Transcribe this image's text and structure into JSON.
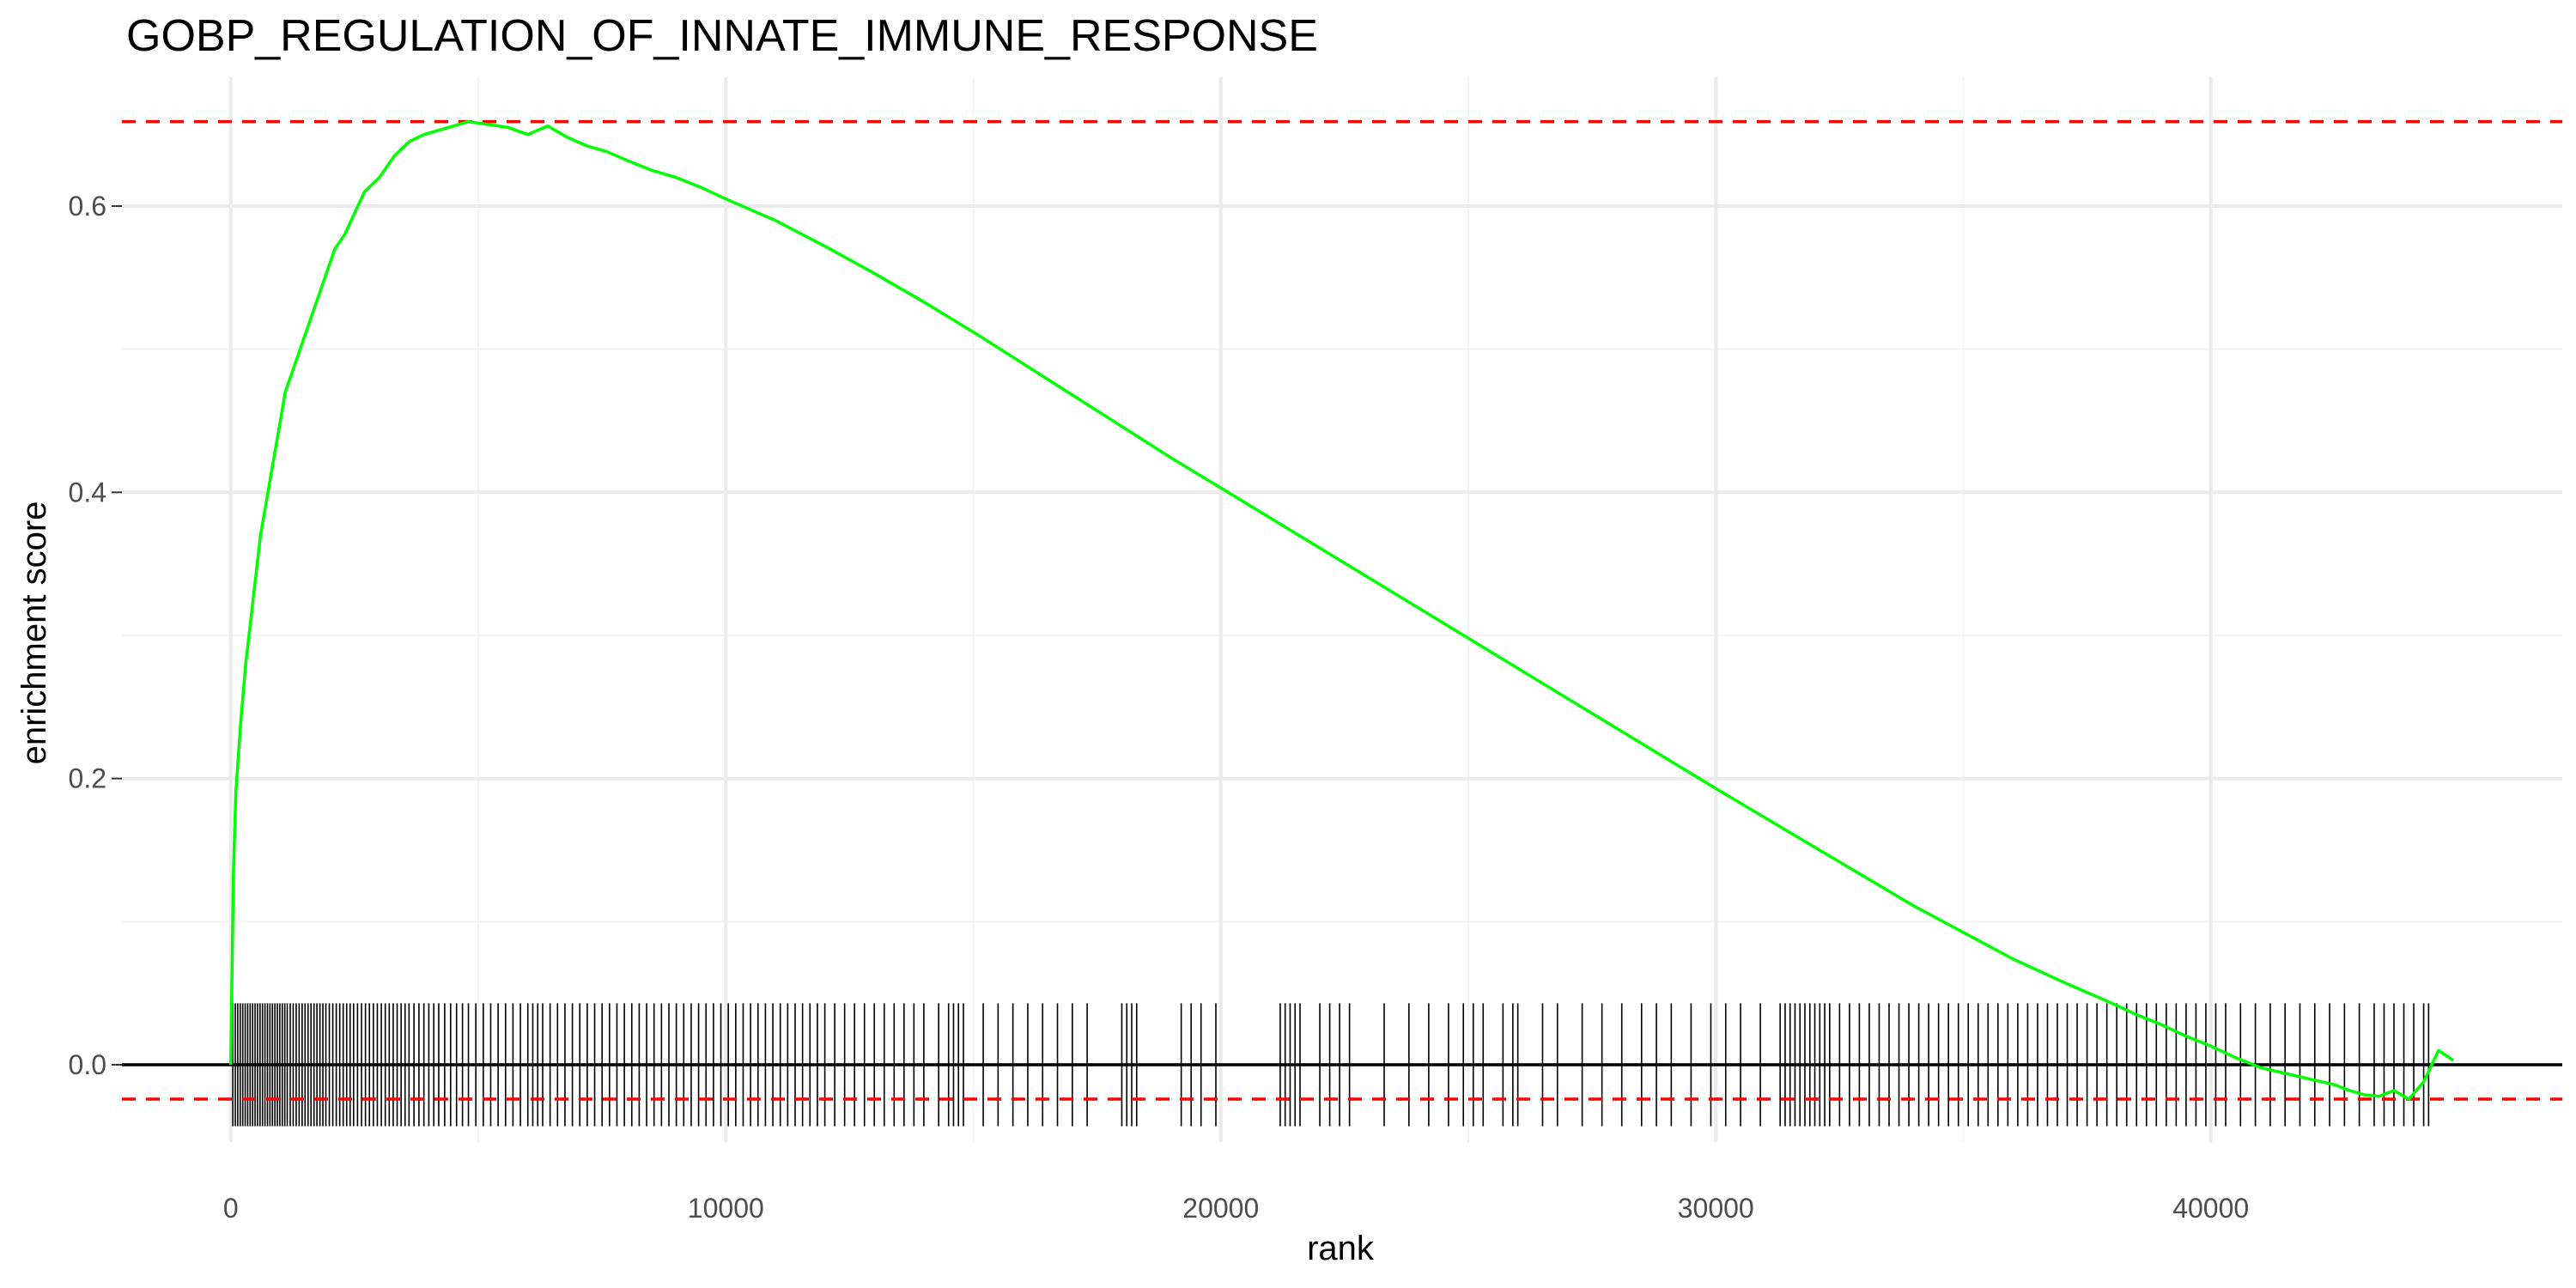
{
  "chart_data": {
    "type": "line",
    "title": "GOBP_REGULATION_OF_INNATE_IMMUNE_RESPONSE",
    "xlabel": "rank",
    "ylabel": "enrichment score",
    "xlim": [
      -2200,
      47100
    ],
    "ylim": [
      -0.054,
      0.69
    ],
    "x_ticks": [
      0,
      10000,
      20000,
      30000,
      40000
    ],
    "x_tick_labels": [
      "0",
      "10000",
      "20000",
      "30000",
      "40000"
    ],
    "y_ticks": [
      0.0,
      0.2,
      0.4,
      0.6
    ],
    "y_tick_labels": [
      "0.0",
      "0.2",
      "0.4",
      "0.6"
    ],
    "grid": true,
    "legend": "none",
    "colors": {
      "curve": "#00ff00",
      "threshold_lines": "#ff0000",
      "zero_line": "#000000",
      "hits": "#000000",
      "grid": "#ebebeb"
    },
    "max_es": 0.659,
    "min_es": -0.024,
    "zero_line": 0.0,
    "series": [
      {
        "x": [
          0,
          50,
          100,
          200,
          300,
          400,
          500,
          600,
          700,
          800,
          900,
          1000,
          1100,
          1200,
          1300,
          1500,
          1700,
          1900,
          2100,
          2300,
          2500,
          2700,
          3000,
          3300,
          3600,
          3900,
          4200,
          4500,
          4800,
          5200,
          5600,
          6000,
          6400,
          6800,
          7200,
          7600,
          8000,
          8500,
          9000,
          9500,
          10000,
          11000,
          12000,
          13000,
          14000,
          15000,
          16000,
          17000,
          18000,
          19000,
          20000,
          22000,
          24000,
          26000,
          28000,
          30000,
          32000,
          34000,
          36000,
          37000,
          38000,
          38500,
          39000,
          39500,
          40000,
          40500,
          41000,
          41500,
          42000,
          42500,
          42800,
          43100,
          43400,
          43700,
          44000,
          44300,
          44600,
          44900
        ],
        "y": [
          0.0,
          0.13,
          0.19,
          0.24,
          0.28,
          0.31,
          0.34,
          0.37,
          0.39,
          0.41,
          0.43,
          0.45,
          0.47,
          0.48,
          0.49,
          0.51,
          0.53,
          0.55,
          0.57,
          0.58,
          0.595,
          0.61,
          0.62,
          0.635,
          0.645,
          0.65,
          0.653,
          0.656,
          0.659,
          0.657,
          0.655,
          0.65,
          0.656,
          0.648,
          0.642,
          0.638,
          0.632,
          0.625,
          0.62,
          0.613,
          0.605,
          0.59,
          0.572,
          0.553,
          0.533,
          0.512,
          0.49,
          0.468,
          0.446,
          0.424,
          0.403,
          0.361,
          0.319,
          0.277,
          0.235,
          0.193,
          0.152,
          0.111,
          0.074,
          0.058,
          0.043,
          0.035,
          0.028,
          0.02,
          0.013,
          0.005,
          -0.002,
          -0.006,
          -0.01,
          -0.014,
          -0.018,
          -0.021,
          -0.022,
          -0.018,
          -0.024,
          -0.012,
          0.01,
          0.003
        ]
      }
    ],
    "hits": [
      40,
      90,
      140,
      190,
      240,
      290,
      340,
      390,
      440,
      490,
      540,
      590,
      640,
      690,
      740,
      790,
      840,
      890,
      940,
      990,
      1040,
      1090,
      1140,
      1200,
      1260,
      1320,
      1380,
      1440,
      1500,
      1560,
      1620,
      1680,
      1740,
      1800,
      1860,
      1920,
      1990,
      2060,
      2130,
      2200,
      2270,
      2340,
      2410,
      2480,
      2560,
      2640,
      2720,
      2800,
      2880,
      2960,
      3040,
      3120,
      3200,
      3280,
      3360,
      3440,
      3520,
      3600,
      3700,
      3800,
      3900,
      4000,
      4100,
      4200,
      4320,
      4440,
      4560,
      4680,
      4800,
      4950,
      5100,
      5250,
      5400,
      5550,
      5700,
      5850,
      6000,
      6100,
      6200,
      6300,
      6450,
      6600,
      6750,
      6900,
      7050,
      7200,
      7350,
      7500,
      7650,
      7800,
      7950,
      8100,
      8250,
      8400,
      8550,
      8700,
      8850,
      9000,
      9150,
      9300,
      9450,
      9600,
      9750,
      9900,
      10050,
      10200,
      10350,
      10500,
      10650,
      10800,
      10950,
      11100,
      11250,
      11400,
      11550,
      11700,
      11850,
      12000,
      12200,
      12400,
      12600,
      12800,
      13000,
      13200,
      13400,
      13600,
      13800,
      14000,
      14300,
      14500,
      14600,
      14700,
      14800,
      15200,
      15500,
      15800,
      16100,
      16400,
      16700,
      17000,
      17300,
      18000,
      18100,
      18200,
      18300,
      19200,
      19400,
      19600,
      19900,
      21200,
      21300,
      21400,
      21500,
      21600,
      22000,
      22200,
      22400,
      22600,
      23300,
      23800,
      24200,
      24600,
      24900,
      25100,
      25300,
      25700,
      25900,
      26000,
      26500,
      26800,
      27300,
      27700,
      28100,
      28500,
      28800,
      29100,
      29500,
      29900,
      30200,
      30500,
      30900,
      31300,
      31400,
      31500,
      31600,
      31700,
      31800,
      31900,
      32000,
      32100,
      32200,
      32300,
      32500,
      32700,
      32900,
      33100,
      33300,
      33500,
      33700,
      33900,
      34100,
      34300,
      34500,
      34700,
      34900,
      35100,
      35300,
      35500,
      35700,
      35900,
      36100,
      36300,
      36500,
      36700,
      36900,
      37100,
      37300,
      37500,
      37700,
      37900,
      38100,
      38300,
      38500,
      38700,
      38900,
      39100,
      39300,
      39500,
      39700,
      39900,
      40100,
      40300,
      40600,
      40900,
      41200,
      41500,
      41800,
      42100,
      42400,
      42700,
      43000,
      43300,
      43500,
      43700,
      43900,
      44100,
      44300,
      44400
    ]
  }
}
